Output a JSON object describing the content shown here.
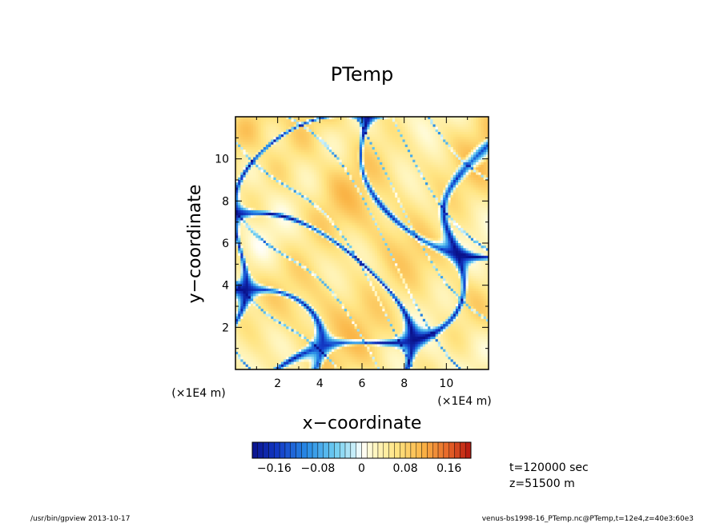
{
  "chart_data": {
    "type": "heatmap",
    "title": "PTemp",
    "xlabel": "x−coordinate",
    "ylabel": "y−coordinate",
    "xlim": [
      0,
      12
    ],
    "ylim": [
      0,
      12
    ],
    "x_ticks": [
      2,
      4,
      6,
      8,
      10
    ],
    "x_tick_labels": [
      "2",
      "4",
      "6",
      "8",
      "10"
    ],
    "y_ticks": [
      2,
      4,
      6,
      8,
      10
    ],
    "y_tick_labels": [
      "2",
      "4",
      "6",
      "8",
      "10"
    ],
    "x_unit": "(×1E4 m)",
    "y_unit": "(×1E4 m)",
    "colorbar": {
      "min": -0.2,
      "max": 0.2,
      "levels": 40,
      "tick_values": [
        -0.16,
        -0.08,
        0,
        0.08,
        0.16
      ],
      "tick_labels": [
        "−0.16",
        "−0.08",
        "0",
        "0.08",
        "0.16"
      ]
    },
    "time_label": "t=120000 sec",
    "height_label": "z=51500 m"
  },
  "footer": {
    "program": "/usr/bin/gpview   2013-10-17",
    "source": "venus-bs1998-16_PTemp.nc@PTemp,t=12e4,z=40e3:60e3"
  },
  "colors": {
    "deep_blue": "#0a1a9a",
    "blue": "#1f5fd6",
    "cyan": "#5cc8ee",
    "light_cyan": "#bfe9f7",
    "white": "#ffffff",
    "pale_yellow": "#fff7c0",
    "yellow": "#ffe78a",
    "orange": "#f3a23a",
    "red": "#c21b12"
  }
}
